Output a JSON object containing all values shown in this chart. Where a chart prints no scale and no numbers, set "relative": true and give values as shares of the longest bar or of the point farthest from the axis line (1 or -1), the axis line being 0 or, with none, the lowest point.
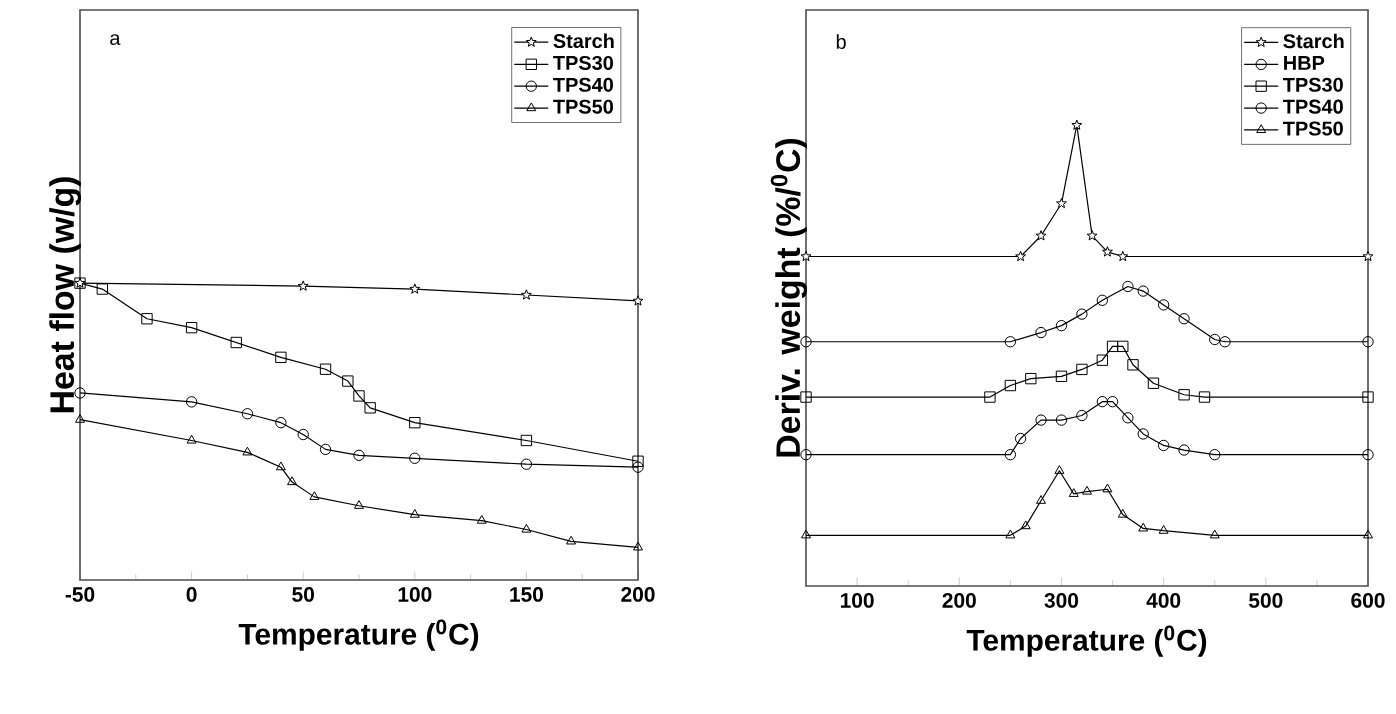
{
  "chart_data": [
    {
      "type": "line",
      "relative": true,
      "xlabel": "Temperature ($^{0}$C)",
      "ylabel": "Heat flow (w/g)",
      "annotations": [
        "a"
      ],
      "xlim": [
        -50,
        200
      ],
      "xticks": [
        -50,
        0,
        50,
        100,
        150,
        200
      ],
      "legend": "top right",
      "grid": false,
      "line_style": "solid",
      "series": [
        {
          "name": "Starch",
          "color": "#000000",
          "marker": "star",
          "x": [
            -50,
            50,
            100,
            150,
            200
          ],
          "values": [
            1.0,
            0.99,
            0.98,
            0.96,
            0.94
          ]
        },
        {
          "name": "TPS30",
          "color": "#000000",
          "marker": "square",
          "x": [
            -50,
            -40,
            -20,
            0,
            20,
            40,
            60,
            70,
            75,
            80,
            100,
            150,
            200
          ],
          "values": [
            1.0,
            0.98,
            0.88,
            0.85,
            0.8,
            0.75,
            0.71,
            0.67,
            0.62,
            0.58,
            0.53,
            0.47,
            0.4
          ]
        },
        {
          "name": "TPS40",
          "color": "#000000",
          "marker": "circle",
          "x": [
            -50,
            0,
            25,
            40,
            50,
            60,
            75,
            100,
            150,
            200
          ],
          "values": [
            0.63,
            0.6,
            0.56,
            0.53,
            0.49,
            0.44,
            0.42,
            0.41,
            0.39,
            0.38
          ]
        },
        {
          "name": "TPS50",
          "color": "#000000",
          "marker": "triangle",
          "x": [
            -50,
            0,
            25,
            40,
            45,
            55,
            75,
            100,
            130,
            150,
            170,
            200
          ],
          "values": [
            0.54,
            0.47,
            0.43,
            0.38,
            0.33,
            0.28,
            0.25,
            0.22,
            0.2,
            0.17,
            0.13,
            0.11
          ]
        }
      ]
    },
    {
      "type": "line",
      "relative": true,
      "xlabel": "Temperature ($^{0}$C)",
      "ylabel": "Deriv. weight (%/$^{0}$C)",
      "annotations": [
        "b"
      ],
      "xlim": [
        50,
        600
      ],
      "xticks": [
        100,
        200,
        300,
        400,
        500,
        600
      ],
      "legend": "top right",
      "grid": false,
      "line_style": "solid",
      "series": [
        {
          "name": "Starch",
          "color": "#000000",
          "marker": "star",
          "x": [
            50,
            260,
            280,
            300,
            315,
            330,
            345,
            360,
            600
          ],
          "values": [
            0.715,
            0.715,
            0.76,
            0.83,
            1.0,
            0.76,
            0.725,
            0.715,
            0.715
          ]
        },
        {
          "name": "HBP",
          "color": "#000000",
          "marker": "circle",
          "x": [
            50,
            250,
            280,
            300,
            320,
            340,
            365,
            380,
            400,
            420,
            450,
            460,
            600
          ],
          "values": [
            0.53,
            0.53,
            0.55,
            0.565,
            0.59,
            0.62,
            0.65,
            0.64,
            0.61,
            0.58,
            0.535,
            0.53,
            0.53
          ]
        },
        {
          "name": "TPS30",
          "color": "#000000",
          "marker": "square",
          "x": [
            50,
            230,
            250,
            270,
            300,
            320,
            340,
            350,
            360,
            370,
            390,
            420,
            440,
            600
          ],
          "values": [
            0.41,
            0.41,
            0.435,
            0.45,
            0.455,
            0.47,
            0.49,
            0.52,
            0.52,
            0.48,
            0.44,
            0.415,
            0.41,
            0.41
          ]
        },
        {
          "name": "TPS40",
          "color": "#000000",
          "marker": "circle",
          "x": [
            50,
            250,
            260,
            280,
            300,
            320,
            340,
            350,
            365,
            380,
            400,
            420,
            450,
            600
          ],
          "values": [
            0.285,
            0.285,
            0.32,
            0.36,
            0.36,
            0.37,
            0.4,
            0.4,
            0.365,
            0.33,
            0.305,
            0.295,
            0.285,
            0.285
          ]
        },
        {
          "name": "TPS50",
          "color": "#000000",
          "marker": "triangle",
          "x": [
            50,
            250,
            265,
            280,
            298,
            312,
            325,
            345,
            360,
            380,
            400,
            450,
            600
          ],
          "values": [
            0.11,
            0.11,
            0.13,
            0.185,
            0.25,
            0.2,
            0.205,
            0.21,
            0.155,
            0.125,
            0.12,
            0.11,
            0.11
          ]
        }
      ]
    }
  ]
}
